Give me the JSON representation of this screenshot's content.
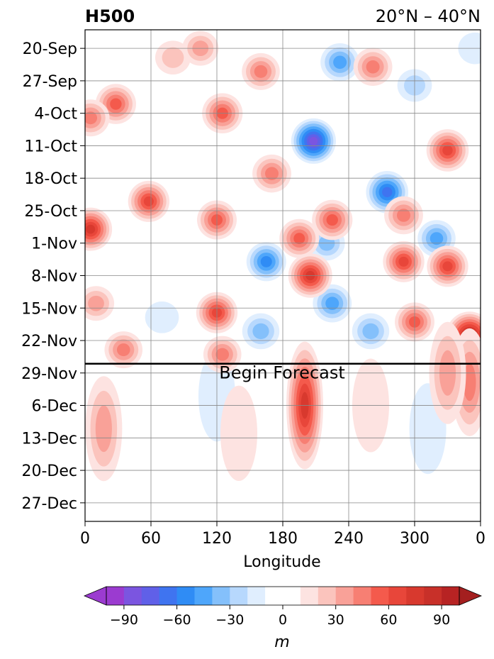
{
  "chart_data": {
    "type": "heatmap",
    "title_left": "H500",
    "title_right": "20°N – 40°N",
    "xlabel": "Longitude",
    "ylabel": "",
    "x_ticks": [
      "0",
      "60",
      "120",
      "180",
      "240",
      "300",
      "0"
    ],
    "x_tick_values": [
      0,
      60,
      120,
      180,
      240,
      300,
      360
    ],
    "xlim": [
      0,
      360
    ],
    "y_ticks": [
      "20-Sep",
      "27-Sep",
      "4-Oct",
      "11-Oct",
      "18-Oct",
      "25-Oct",
      "1-Nov",
      "8-Nov",
      "15-Nov",
      "22-Nov",
      "29-Nov",
      "6-Dec",
      "13-Dec",
      "20-Dec",
      "27-Dec"
    ],
    "ylim": [
      "2023-09-16",
      "2023-12-31"
    ],
    "y_inverted": true,
    "grid": true,
    "forecast_start": "2023-11-27",
    "forecast_label": "Begin Forecast",
    "colorbar": {
      "label": "m",
      "orientation": "horizontal",
      "placement": "bottom",
      "extend": "both",
      "ticks": [
        -90,
        -60,
        -30,
        0,
        30,
        60,
        90
      ],
      "tick_labels": [
        "−90",
        "−60",
        "−30",
        "0",
        "30",
        "60",
        "90"
      ],
      "levels": [
        -100,
        -90,
        -80,
        -70,
        -60,
        -50,
        -40,
        -30,
        -20,
        -10,
        10,
        20,
        30,
        40,
        50,
        60,
        70,
        80,
        90,
        100
      ],
      "colors_low_to_high": [
        "#9b3bd0",
        "#7b55e0",
        "#6060e8",
        "#3f74f0",
        "#2f8cf5",
        "#4ea6fb",
        "#84c0fb",
        "#b7d8fd",
        "#e0eefe",
        "#ffffff",
        "#fde3e1",
        "#fbc4bd",
        "#f9a198",
        "#f77f73",
        "#f45a4c",
        "#e8463a",
        "#d8392e",
        "#c83029",
        "#b72323"
      ],
      "extend_low_color": "#9b3bd0",
      "extend_high_color": "#a41f1f"
    },
    "anomaly_features": [
      {
        "lon": 208,
        "date": "2023-10-10",
        "value": -80
      },
      {
        "lon": 275,
        "date": "2023-10-21",
        "value": -65
      },
      {
        "lon": 232,
        "date": "2023-09-23",
        "value": -45
      },
      {
        "lon": 165,
        "date": "2023-11-05",
        "value": -50
      },
      {
        "lon": 225,
        "date": "2023-11-14",
        "value": -45
      },
      {
        "lon": 320,
        "date": "2023-10-31",
        "value": -40
      },
      {
        "lon": 160,
        "date": "2023-11-20",
        "value": -35
      },
      {
        "lon": 260,
        "date": "2023-11-20",
        "value": -35
      },
      {
        "lon": 220,
        "date": "2023-11-01",
        "value": -30
      },
      {
        "lon": 300,
        "date": "2023-09-28",
        "value": -20
      },
      {
        "lon": 70,
        "date": "2023-11-17",
        "value": -15
      },
      {
        "lon": 355,
        "date": "2023-09-20",
        "value": -15
      },
      {
        "lon": 120,
        "date": "2023-12-04",
        "value": -10
      },
      {
        "lon": 312,
        "date": "2023-12-11",
        "value": -10
      },
      {
        "lon": 350,
        "date": "2023-11-21",
        "value": 95
      },
      {
        "lon": 5,
        "date": "2023-10-29",
        "value": 70
      },
      {
        "lon": 205,
        "date": "2023-11-08",
        "value": 75
      },
      {
        "lon": 330,
        "date": "2023-10-12",
        "value": 65
      },
      {
        "lon": 58,
        "date": "2023-10-23",
        "value": 60
      },
      {
        "lon": 28,
        "date": "2023-10-02",
        "value": 55
      },
      {
        "lon": 125,
        "date": "2023-10-04",
        "value": 55
      },
      {
        "lon": 225,
        "date": "2023-10-27",
        "value": 55
      },
      {
        "lon": 290,
        "date": "2023-11-05",
        "value": 60
      },
      {
        "lon": 120,
        "date": "2023-11-16",
        "value": 60
      },
      {
        "lon": 120,
        "date": "2023-10-27",
        "value": 50
      },
      {
        "lon": 170,
        "date": "2023-10-17",
        "value": 45
      },
      {
        "lon": 262,
        "date": "2023-09-24",
        "value": 45
      },
      {
        "lon": 160,
        "date": "2023-09-25",
        "value": 40
      },
      {
        "lon": 330,
        "date": "2023-11-06",
        "value": 60
      },
      {
        "lon": 35,
        "date": "2023-11-24",
        "value": 40
      },
      {
        "lon": 125,
        "date": "2023-11-25",
        "value": 40
      },
      {
        "lon": 300,
        "date": "2023-11-18",
        "value": 50
      },
      {
        "lon": 195,
        "date": "2023-10-31",
        "value": 50
      },
      {
        "lon": 290,
        "date": "2023-10-26",
        "value": 45
      },
      {
        "lon": 10,
        "date": "2023-11-14",
        "value": 30
      },
      {
        "lon": 80,
        "date": "2023-09-22",
        "value": 25
      },
      {
        "lon": 105,
        "date": "2023-09-20",
        "value": 30
      },
      {
        "lon": 350,
        "date": "2023-12-01",
        "value": 40
      },
      {
        "lon": 5,
        "date": "2023-10-05",
        "value": 40
      },
      {
        "lon": 200,
        "date": "2023-12-06",
        "value": 75
      },
      {
        "lon": 17,
        "date": "2023-12-11",
        "value": 35
      },
      {
        "lon": 140,
        "date": "2023-12-12",
        "value": 18
      },
      {
        "lon": 260,
        "date": "2023-12-06",
        "value": 15
      },
      {
        "lon": 330,
        "date": "2023-11-29",
        "value": 30
      }
    ]
  }
}
